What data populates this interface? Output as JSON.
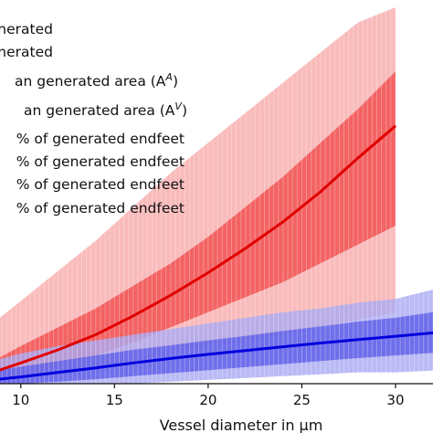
{
  "chart_data": {
    "type": "area",
    "title": "",
    "xlabel": "Vessel diameter in µm",
    "ylabel": "",
    "xlim": [
      8.5,
      32
    ],
    "ylim": [
      0,
      1
    ],
    "x_ticks": [
      10,
      15,
      20,
      25,
      30
    ],
    "grid": false,
    "legend_position": "top-left",
    "legend": [
      {
        "text": "enerated",
        "kind": "swatch",
        "color": "#f5a5a5"
      },
      {
        "text": "enerated",
        "kind": "swatch",
        "color": "#a5a5f5"
      },
      {
        "text": "an generated area (A",
        "sup": "A",
        "suffix": ")",
        "kind": "line",
        "color": "#e00000"
      },
      {
        "text": "an generated area (A",
        "sup": "V",
        "suffix": ")",
        "kind": "line",
        "color": "#0000dd"
      },
      {
        "text": "% of generated endfeet",
        "kind": "swatch",
        "color": "#f08080"
      },
      {
        "text": "% of generated endfeet",
        "kind": "swatch",
        "color": "#ee3b3b"
      },
      {
        "text": "% of generated endfeet",
        "kind": "swatch",
        "color": "#9a9af0"
      },
      {
        "text": "% of generated endfeet",
        "kind": "swatch",
        "color": "#5858e6"
      }
    ],
    "series": [
      {
        "id": "arterial",
        "color": "#e00000",
        "x": [
          8.5,
          10,
          12,
          14,
          16,
          18,
          20,
          22,
          24,
          26,
          28,
          30
        ],
        "mean": [
          0.03,
          0.055,
          0.09,
          0.13,
          0.18,
          0.235,
          0.295,
          0.36,
          0.43,
          0.51,
          0.6,
          0.685
        ],
        "band_outer": {
          "low": [
            0.0,
            0.0,
            0.02,
            0.04,
            0.06,
            0.08,
            0.1,
            0.11,
            0.13,
            0.15,
            0.17,
            0.19
          ],
          "high": [
            0.16,
            0.22,
            0.3,
            0.38,
            0.47,
            0.56,
            0.64,
            0.72,
            0.8,
            0.88,
            0.96,
            1.0
          ]
        },
        "band_inner": {
          "low": [
            0.0,
            0.02,
            0.045,
            0.075,
            0.11,
            0.15,
            0.19,
            0.23,
            0.27,
            0.32,
            0.37,
            0.42
          ],
          "high": [
            0.06,
            0.1,
            0.15,
            0.2,
            0.26,
            0.32,
            0.39,
            0.47,
            0.55,
            0.64,
            0.73,
            0.83
          ]
        }
      },
      {
        "id": "venous",
        "color": "#0000dd",
        "x": [
          8.5,
          10,
          12,
          14,
          16,
          18,
          20,
          22,
          24,
          26,
          28,
          30,
          32
        ],
        "mean": [
          0.01,
          0.018,
          0.03,
          0.042,
          0.055,
          0.067,
          0.078,
          0.088,
          0.098,
          0.108,
          0.117,
          0.126,
          0.135
        ],
        "band_outer": {
          "low": [
            0.0,
            0.0,
            0.0,
            0.0,
            0.0,
            0.005,
            0.01,
            0.015,
            0.02,
            0.025,
            0.03,
            0.03,
            0.035
          ],
          "high": [
            0.06,
            0.08,
            0.1,
            0.115,
            0.13,
            0.145,
            0.16,
            0.175,
            0.19,
            0.2,
            0.215,
            0.225,
            0.25
          ]
        },
        "band_inner": {
          "low": [
            0.0,
            0.0,
            0.005,
            0.012,
            0.02,
            0.028,
            0.036,
            0.044,
            0.052,
            0.06,
            0.068,
            0.075,
            0.082
          ],
          "high": [
            0.035,
            0.045,
            0.06,
            0.075,
            0.09,
            0.102,
            0.115,
            0.127,
            0.14,
            0.152,
            0.165,
            0.175,
            0.19
          ]
        }
      }
    ]
  }
}
